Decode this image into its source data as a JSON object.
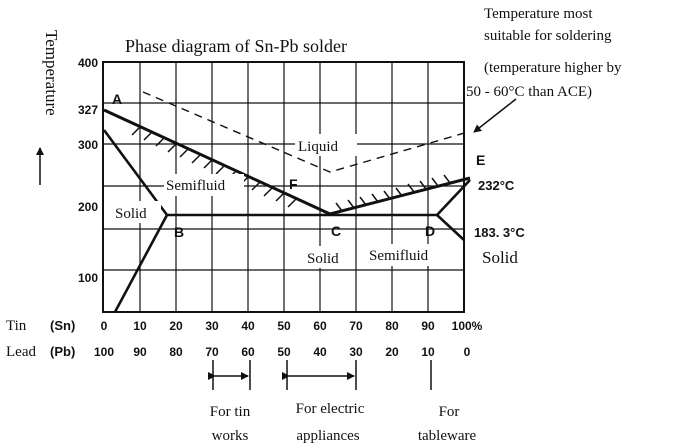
{
  "title": "Phase diagram of Sn-Pb solder",
  "y_axis": {
    "label": "Temperature",
    "ticks": [
      "400",
      "327",
      "300",
      "200",
      "100"
    ]
  },
  "x_axis": {
    "tin_label": "Tin",
    "tin_symbol": "(Sn)",
    "lead_label": "Lead",
    "lead_symbol": "(Pb)",
    "tin_ticks": [
      "0",
      "10",
      "20",
      "30",
      "40",
      "50",
      "60",
      "70",
      "80",
      "90",
      "100%"
    ],
    "lead_ticks": [
      "100",
      "90",
      "80",
      "70",
      "60",
      "50",
      "40",
      "30",
      "20",
      "10",
      "0"
    ]
  },
  "points": {
    "a": "A",
    "b": "B",
    "c": "C",
    "d": "D",
    "e": "E",
    "f": "F"
  },
  "regions": {
    "liquid": "Liquid",
    "semifluid_left": "Semifluid",
    "solid_left": "Solid",
    "solid_mid": "Solid",
    "semifluid_right": "Semifluid",
    "solid_right": "Solid"
  },
  "temps": {
    "sn_melting": "232°C",
    "eutectic": "183. 3°C"
  },
  "annotation": {
    "line1": "Temperature most",
    "line2": "suitable for soldering",
    "line3": "(temperature higher by",
    "line4": "50 - 60°C than ACE)"
  },
  "uses": {
    "tin_works_1": "For tin",
    "tin_works_2": "works",
    "electric_1": "For electric",
    "electric_2": "appliances",
    "tableware_1": "For",
    "tableware_2": "tableware"
  },
  "colors": {
    "ink": "#111111",
    "background": "#ffffff"
  }
}
